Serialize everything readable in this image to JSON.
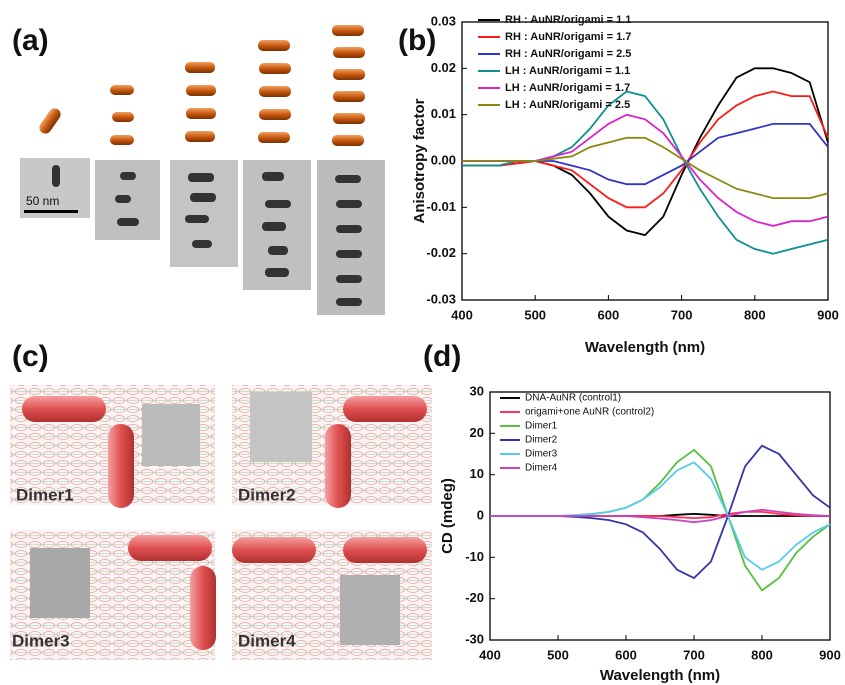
{
  "panel_labels": [
    "(a)",
    "(b)",
    "(c)",
    "(d)"
  ],
  "scale_bar": "50 nm",
  "dimers": [
    "Dimer1",
    "Dimer2",
    "Dimer3",
    "Dimer4"
  ],
  "chart_data": [
    {
      "type": "line",
      "x": [
        400,
        425,
        450,
        475,
        500,
        525,
        550,
        575,
        600,
        625,
        650,
        675,
        700,
        725,
        750,
        775,
        800,
        825,
        850,
        875,
        900
      ],
      "xlim": [
        400,
        900
      ],
      "xticks": [
        400,
        500,
        600,
        700,
        800,
        900
      ],
      "ylim": [
        -0.03,
        0.03
      ],
      "yticks": [
        0.03,
        0.02,
        0.01,
        {
          "value": 0,
          "label": "0.00"
        },
        -0.01,
        -0.02,
        -0.03
      ],
      "xlabel": "Wavelength (nm)",
      "ylabel": "Anisotropy factor",
      "series": [
        {
          "name": "RH : AuNR/origami = 1.1",
          "color": "#000000",
          "values": [
            -0.001,
            -0.001,
            -0.001,
            -0.0005,
            0,
            -0.001,
            -0.003,
            -0.007,
            -0.012,
            -0.015,
            -0.016,
            -0.012,
            -0.003,
            0.005,
            0.012,
            0.018,
            0.02,
            0.02,
            0.019,
            0.017,
            0.004
          ]
        },
        {
          "name": "RH : AuNR/origami = 1.7",
          "color": "#ff1a1a",
          "values": [
            -0.001,
            -0.001,
            -0.001,
            -0.0005,
            0,
            -0.001,
            -0.002,
            -0.005,
            -0.008,
            -0.01,
            -0.01,
            -0.007,
            -0.002,
            0.004,
            0.009,
            0.012,
            0.014,
            0.015,
            0.014,
            0.014,
            0.005
          ]
        },
        {
          "name": "RH : AuNR/origami = 2.5",
          "color": "#3333cc",
          "values": [
            0,
            0,
            0,
            0,
            0,
            0,
            -0.001,
            -0.002,
            -0.004,
            -0.005,
            -0.005,
            -0.003,
            -0.001,
            0.002,
            0.005,
            0.006,
            0.007,
            0.008,
            0.008,
            0.008,
            0.003
          ]
        },
        {
          "name": "LH : AuNR/origami = 1.1",
          "color": "#109090",
          "values": [
            -0.001,
            -0.001,
            -0.001,
            0,
            0,
            0.001,
            0.003,
            0.007,
            0.012,
            0.015,
            0.014,
            0.009,
            0.001,
            -0.006,
            -0.012,
            -0.017,
            -0.019,
            -0.02,
            -0.019,
            -0.018,
            -0.017
          ]
        },
        {
          "name": "LH : AuNR/origami = 1.7",
          "color": "#dd22cc",
          "values": [
            0,
            0,
            0,
            0,
            0,
            0.001,
            0.002,
            0.005,
            0.008,
            0.01,
            0.009,
            0.006,
            0.001,
            -0.004,
            -0.008,
            -0.011,
            -0.013,
            -0.014,
            -0.013,
            -0.013,
            -0.012
          ]
        },
        {
          "name": "LH : AuNR/origami = 2.5",
          "color": "#8a8a10",
          "values": [
            0,
            0,
            0,
            0,
            0,
            0.0005,
            0.001,
            0.003,
            0.004,
            0.005,
            0.005,
            0.003,
            0.0005,
            -0.002,
            -0.004,
            -0.006,
            -0.007,
            -0.008,
            -0.008,
            -0.008,
            -0.007
          ]
        }
      ]
    },
    {
      "type": "line",
      "x": [
        400,
        425,
        450,
        475,
        500,
        525,
        550,
        575,
        600,
        625,
        650,
        675,
        700,
        725,
        750,
        775,
        800,
        825,
        850,
        875,
        900
      ],
      "xlim": [
        400,
        900
      ],
      "xticks": [
        400,
        500,
        600,
        700,
        800,
        900
      ],
      "ylim": [
        -30,
        30
      ],
      "yticks": [
        30,
        20,
        10,
        0,
        -10,
        -20,
        -30
      ],
      "xlabel": "Wavelength (nm)",
      "ylabel": "CD (mdeg)",
      "series": [
        {
          "name": "DNA-AuNR (control1)",
          "color": "#000000",
          "values": [
            0,
            0,
            0,
            0,
            0,
            0,
            0,
            0,
            0,
            0,
            0,
            0.3,
            0.5,
            0.3,
            0,
            0,
            0,
            0,
            0,
            0,
            0
          ]
        },
        {
          "name": "origami+one AuNR (control2)",
          "color": "#ff3355",
          "values": [
            0,
            0,
            0,
            0,
            0,
            0,
            0,
            0,
            0,
            0,
            0,
            -0.3,
            -0.5,
            -0.3,
            0.5,
            1,
            1,
            0.5,
            0.2,
            0,
            0
          ]
        },
        {
          "name": "Dimer1",
          "color": "#55c040",
          "values": [
            0,
            0,
            0,
            0,
            0,
            0.2,
            0.5,
            1,
            2,
            4,
            8,
            13,
            16,
            12,
            0,
            -12,
            -18,
            -15,
            -9,
            -5,
            -2
          ]
        },
        {
          "name": "Dimer2",
          "color": "#3333aa",
          "values": [
            0,
            0,
            0,
            0,
            0,
            -0.2,
            -0.5,
            -1,
            -2,
            -4,
            -8,
            -13,
            -15,
            -11,
            0,
            12,
            17,
            15,
            10,
            5,
            2
          ]
        },
        {
          "name": "Dimer3",
          "color": "#55ccee",
          "values": [
            0,
            0,
            0,
            0,
            0,
            0.2,
            0.4,
            1,
            2,
            4,
            7,
            11,
            13,
            9,
            0,
            -10,
            -13,
            -11,
            -7,
            -4,
            -2
          ]
        },
        {
          "name": "Dimer4",
          "color": "#cc44bb",
          "values": [
            0,
            0,
            0,
            0,
            0,
            0,
            0,
            0,
            0,
            -0.3,
            -0.6,
            -1,
            -1.5,
            -1,
            0,
            1,
            1.5,
            1,
            0.5,
            0.2,
            0
          ]
        }
      ]
    }
  ]
}
